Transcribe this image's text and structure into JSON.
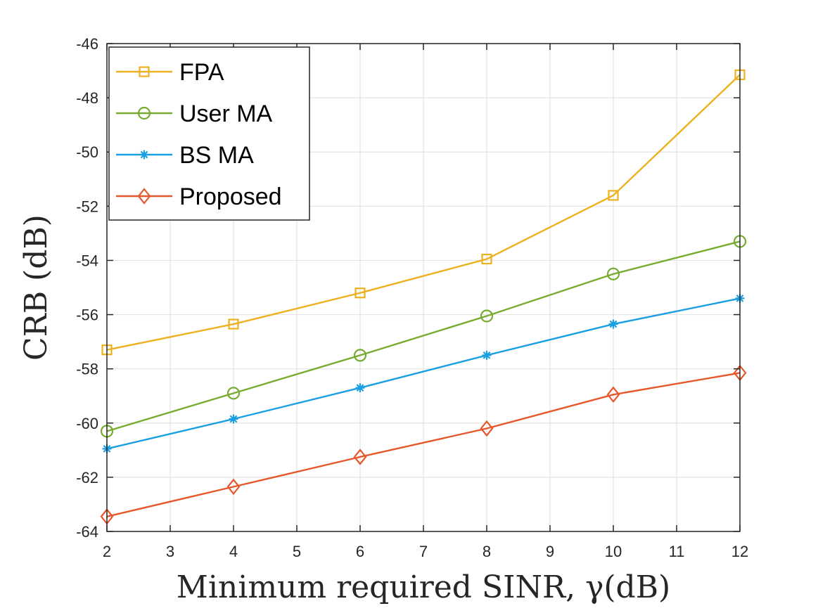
{
  "chart_data": {
    "type": "line",
    "title": "",
    "xlabel": "Minimum required SINR, γ(dB)",
    "ylabel": "CRB (dB)",
    "xlim": [
      2,
      12
    ],
    "ylim": [
      -64,
      -46
    ],
    "xticks": [
      2,
      3,
      4,
      5,
      6,
      7,
      8,
      9,
      10,
      11,
      12
    ],
    "yticks": [
      -46,
      -48,
      -50,
      -52,
      -54,
      -56,
      -58,
      -60,
      -62,
      -64
    ],
    "grid": true,
    "legend_position": "top-left",
    "x": [
      2,
      4,
      6,
      8,
      10,
      12
    ],
    "series": [
      {
        "name": "FPA",
        "color": "#EDB120",
        "marker": "square",
        "values": [
          -57.3,
          -56.35,
          -55.2,
          -53.95,
          -51.6,
          -47.15
        ]
      },
      {
        "name": "User MA",
        "color": "#77AC30",
        "marker": "circle",
        "values": [
          -60.3,
          -58.9,
          -57.5,
          -56.05,
          -54.5,
          -53.3
        ]
      },
      {
        "name": "BS MA",
        "color": "#1A9FE0",
        "marker": "asterisk",
        "values": [
          -60.95,
          -59.85,
          -58.7,
          -57.5,
          -56.35,
          -55.4
        ]
      },
      {
        "name": "Proposed",
        "color": "#E4582B",
        "marker": "diamond",
        "values": [
          -63.45,
          -62.35,
          -61.25,
          -60.2,
          -58.95,
          -58.15
        ]
      }
    ]
  }
}
